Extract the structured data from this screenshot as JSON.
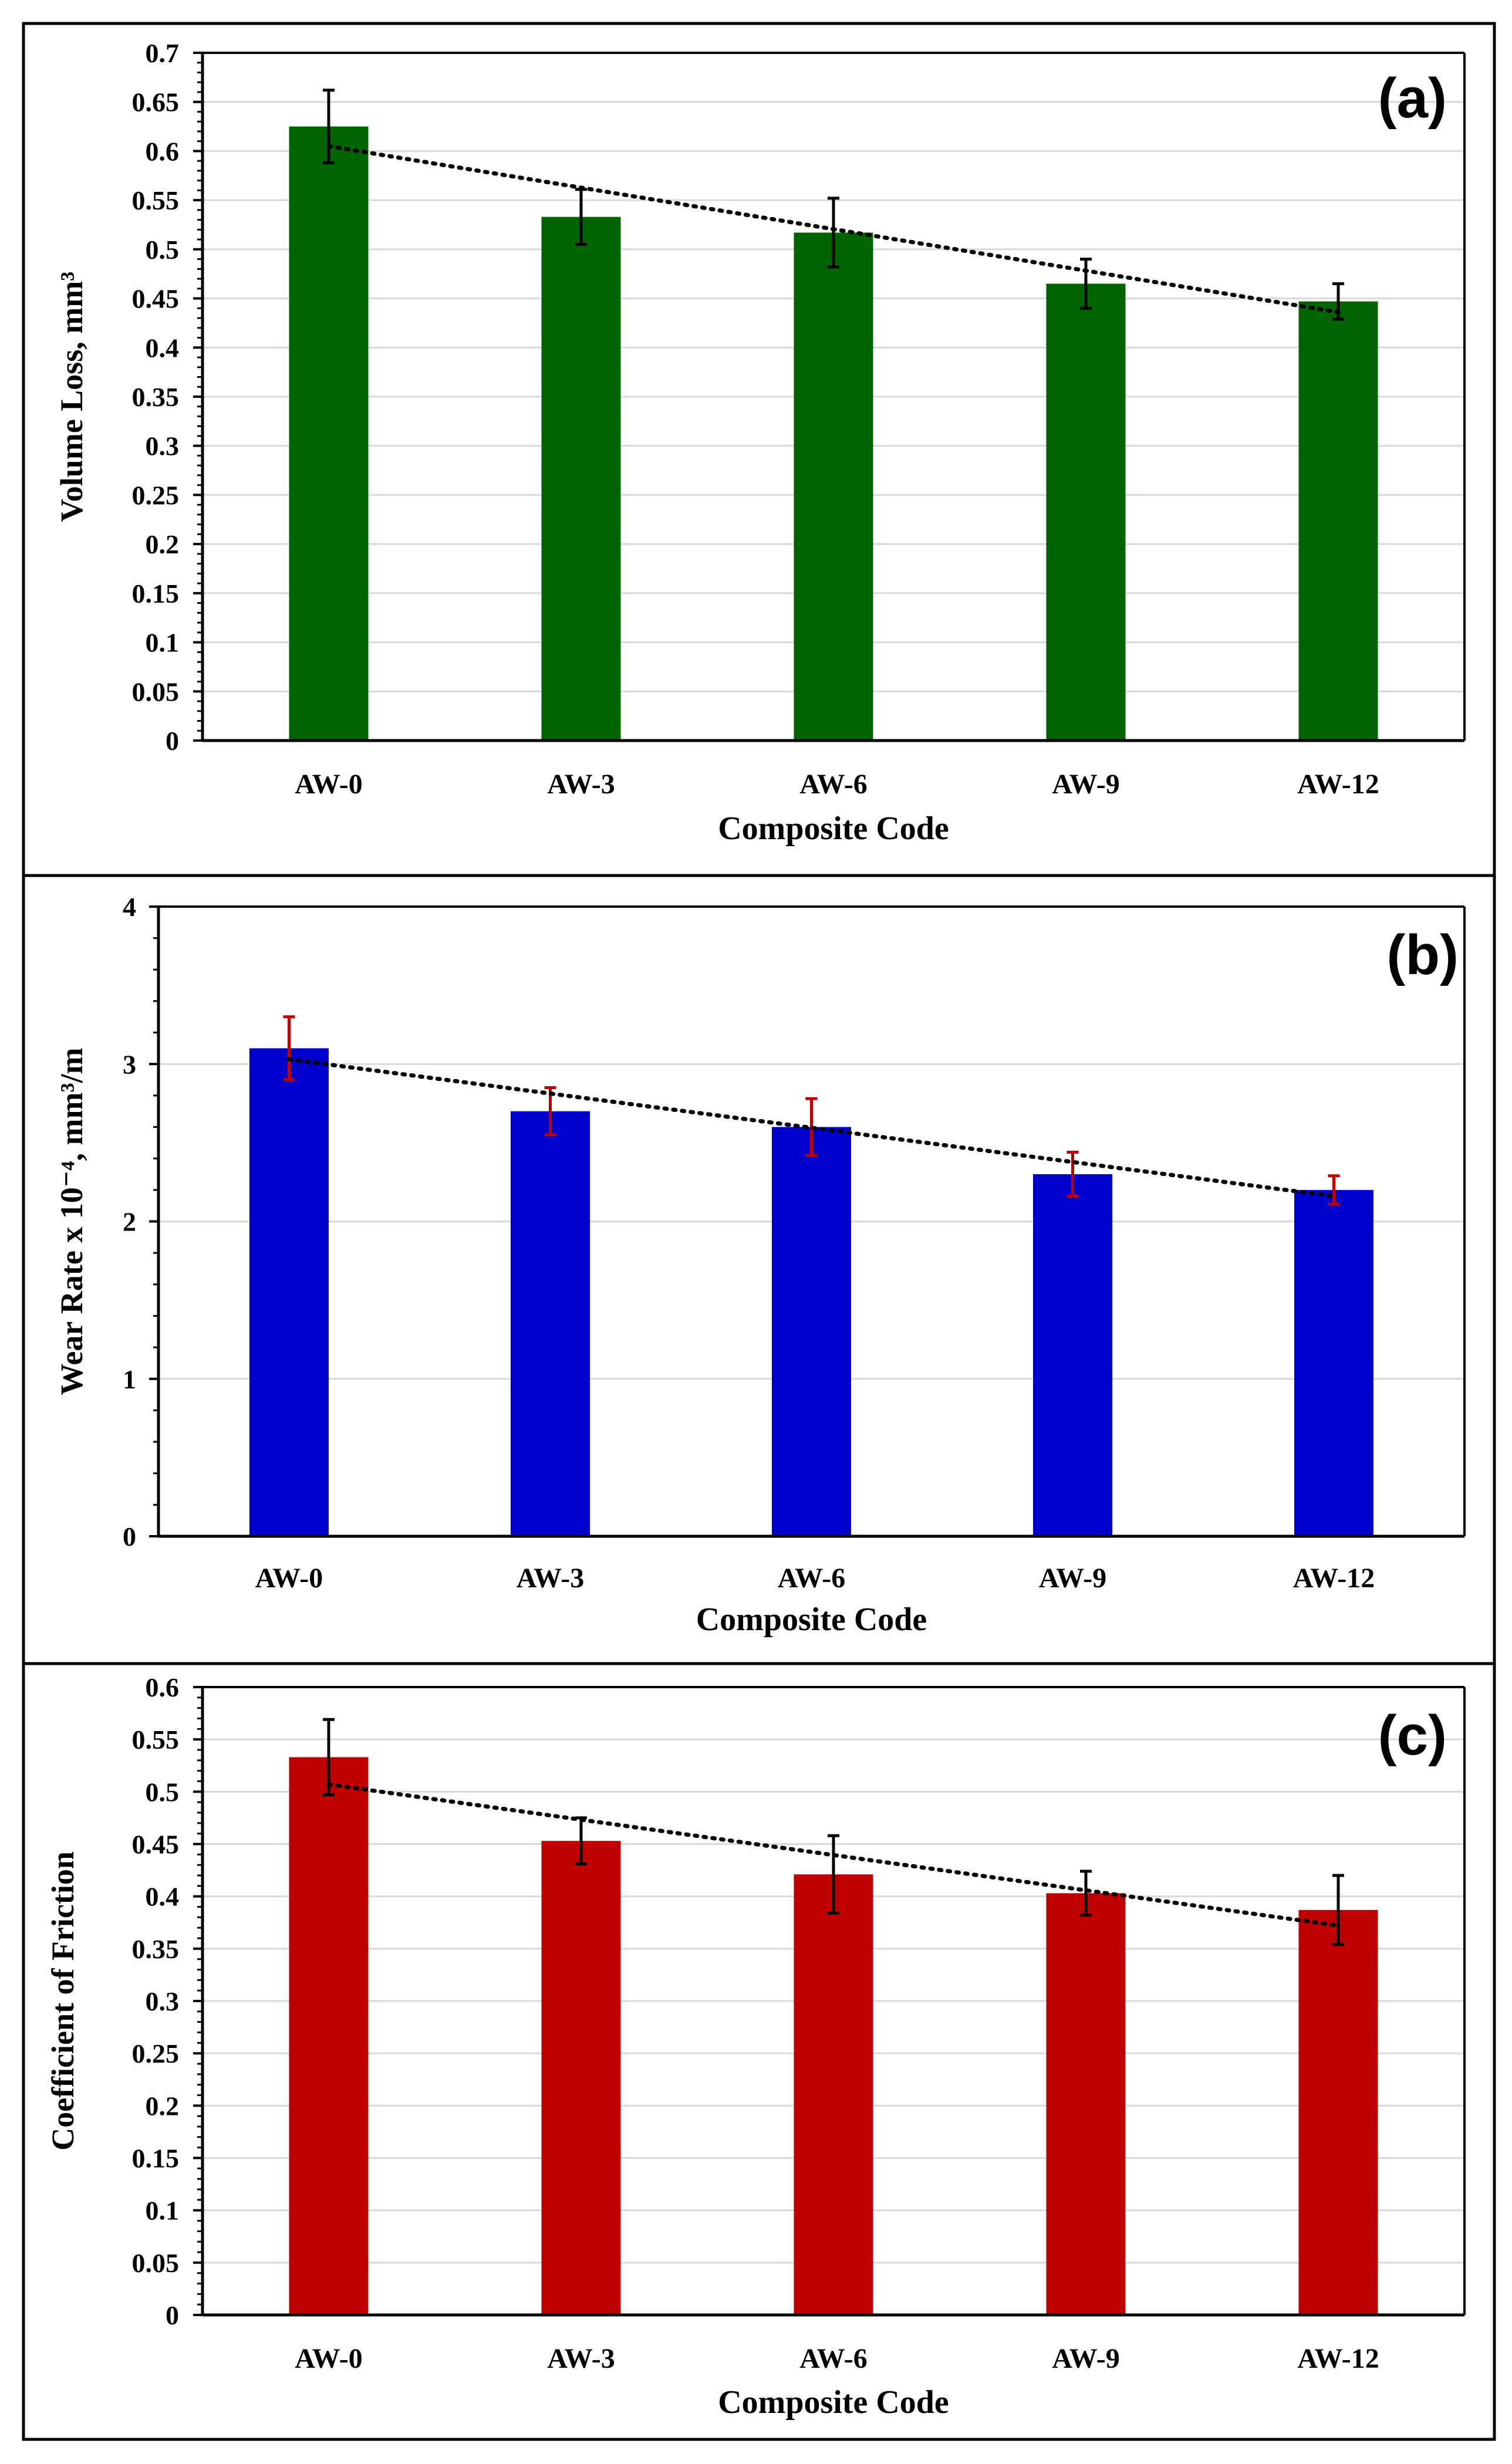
{
  "chart_data": [
    {
      "type": "bar",
      "panel_label": "(a)",
      "categories": [
        "AW-0",
        "AW-3",
        "AW-6",
        "AW-9",
        "AW-12"
      ],
      "values": [
        0.625,
        0.533,
        0.517,
        0.465,
        0.447
      ],
      "errors": [
        0.037,
        0.028,
        0.035,
        0.025,
        0.018
      ],
      "xlabel": "Composite Code",
      "ylabel": "Volume Loss, mm³",
      "ylim": [
        0,
        0.7
      ],
      "yticks": [
        "0",
        "0.05",
        "0.1",
        "0.15",
        "0.2",
        "0.25",
        "0.3",
        "0.35",
        "0.4",
        "0.45",
        "0.5",
        "0.55",
        "0.6",
        "0.65",
        "0.7"
      ],
      "bar_color": "#006400",
      "errorbar_color": "#000000",
      "trendline": [
        0.605,
        0.436
      ],
      "grid": true
    },
    {
      "type": "bar",
      "panel_label": "(b)",
      "categories": [
        "AW-0",
        "AW-3",
        "AW-6",
        "AW-9",
        "AW-12"
      ],
      "values": [
        3.1,
        2.7,
        2.6,
        2.3,
        2.2
      ],
      "errors": [
        0.2,
        0.15,
        0.18,
        0.14,
        0.09
      ],
      "xlabel": "Composite Code",
      "ylabel": "Wear Rate x 10⁻⁴, mm³/m",
      "ylim": [
        0,
        4
      ],
      "yticks": [
        "0",
        "1",
        "2",
        "3",
        "4"
      ],
      "bar_color": "#0000CC",
      "errorbar_color": "#C00000",
      "trendline": [
        3.03,
        2.16
      ],
      "grid": true
    },
    {
      "type": "bar",
      "panel_label": "(c)",
      "categories": [
        "AW-0",
        "AW-3",
        "AW-6",
        "AW-9",
        "AW-12"
      ],
      "values": [
        0.533,
        0.453,
        0.421,
        0.403,
        0.387
      ],
      "errors": [
        0.036,
        0.022,
        0.037,
        0.021,
        0.033
      ],
      "xlabel": "Composite Code",
      "ylabel": "Coefficient of Friction",
      "ylim": [
        0,
        0.6
      ],
      "yticks": [
        "0",
        "0.05",
        "0.1",
        "0.15",
        "0.2",
        "0.25",
        "0.3",
        "0.35",
        "0.4",
        "0.45",
        "0.5",
        "0.55",
        "0.6"
      ],
      "bar_color": "#C00000",
      "errorbar_color": "#000000",
      "trendline": [
        0.507,
        0.372
      ],
      "grid": true
    }
  ]
}
